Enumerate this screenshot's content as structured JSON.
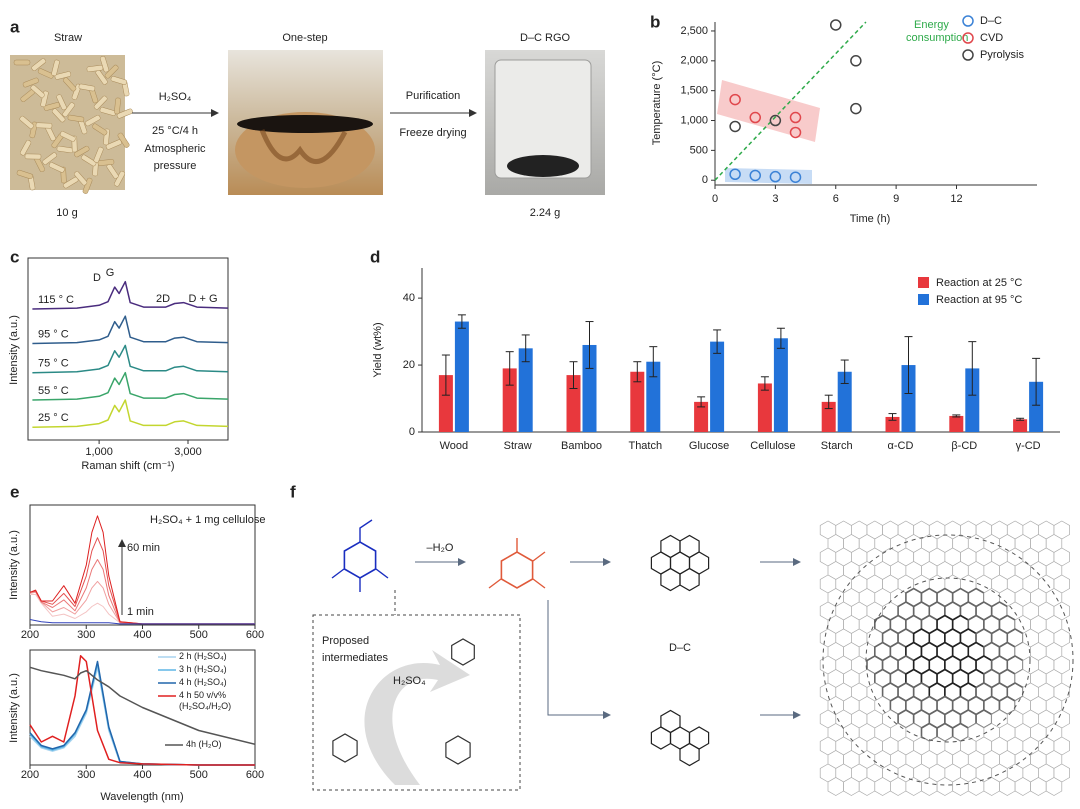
{
  "panel_a": {
    "label": "a",
    "stages": [
      {
        "name": "Straw",
        "mass": "10 g"
      },
      {
        "name": "One-step"
      },
      {
        "name": "D–C RGO",
        "mass": "2.24 g"
      }
    ],
    "step1": {
      "reagent": "H₂SO₄",
      "conditions": [
        "25 °C/4 h",
        "Atmospheric",
        "pressure"
      ]
    },
    "step2": [
      "Purification",
      "Freeze drying"
    ]
  },
  "chart_data": [
    {
      "type": "scatter",
      "panel": "b",
      "x_label": "Time (h)",
      "y_label": "Temperature (°C)",
      "xlim": [
        0,
        16
      ],
      "ylim": [
        -80,
        2650
      ],
      "xticks": [
        0,
        3,
        6,
        9,
        12
      ],
      "yticks": [
        0,
        500,
        {
          "value": 1000,
          "label": "1,000"
        },
        {
          "value": 1500,
          "label": "1,500"
        },
        {
          "value": 2000,
          "label": "2,000"
        },
        {
          "value": 2500,
          "label": "2,500"
        }
      ],
      "legend": "upper right",
      "series": [
        {
          "name": "D–C",
          "color": "#3b82d6",
          "x": [
            1,
            2,
            3,
            4
          ],
          "values": [
            100,
            80,
            60,
            50
          ]
        },
        {
          "name": "CVD",
          "color": "#e0474c",
          "x": [
            1,
            2,
            4,
            4
          ],
          "values": [
            1350,
            1050,
            1050,
            800
          ]
        },
        {
          "name": "Pyrolysis",
          "color": "#444444",
          "x": [
            1,
            3,
            6,
            7,
            7
          ],
          "values": [
            900,
            1000,
            2600,
            2000,
            1200
          ]
        }
      ],
      "trend": {
        "label": [
          "Energy",
          "consumption"
        ],
        "color": "#2eaa4a",
        "x": [
          0,
          7.5
        ],
        "values": [
          0,
          2650
        ]
      }
    },
    {
      "type": "line",
      "panel": "c",
      "x_label": "Raman shift (cm⁻¹)",
      "y_label": "Intensity (a.u.)",
      "xlim": [
        -600,
        3900
      ],
      "ylim": [
        0,
        10
      ],
      "xticks": [
        {
          "value": 1000,
          "label": "1,000"
        },
        {
          "value": 3000,
          "label": "3,000"
        }
      ],
      "annotations": [
        "D",
        "G",
        "2D",
        "D + G"
      ],
      "x": [
        -500,
        500,
        1000,
        1200,
        1350,
        1450,
        1590,
        1700,
        2000,
        2500,
        2700,
        2900,
        3200,
        3900
      ],
      "series": [
        {
          "name": "115 ° C",
          "color": "#4a2c7e",
          "values": [
            7.2,
            7.25,
            7.4,
            7.6,
            8.4,
            8.05,
            8.7,
            7.55,
            7.3,
            7.3,
            7.5,
            7.55,
            7.3,
            7.25
          ]
        },
        {
          "name": "95 ° C",
          "color": "#2f5d8c",
          "values": [
            5.3,
            5.35,
            5.5,
            5.7,
            6.5,
            6.15,
            6.8,
            5.65,
            5.4,
            5.4,
            5.6,
            5.65,
            5.4,
            5.35
          ]
        },
        {
          "name": "75 ° C",
          "color": "#2b8a86",
          "values": [
            3.7,
            3.75,
            3.9,
            4.1,
            4.9,
            4.55,
            5.2,
            4.05,
            3.8,
            3.8,
            4.0,
            4.05,
            3.8,
            3.75
          ]
        },
        {
          "name": "55 ° C",
          "color": "#3aa56a",
          "values": [
            2.2,
            2.25,
            2.4,
            2.6,
            3.4,
            3.05,
            3.7,
            2.55,
            2.3,
            2.3,
            2.5,
            2.55,
            2.3,
            2.25
          ]
        },
        {
          "name": "25 ° C",
          "color": "#c3d62f",
          "values": [
            0.7,
            0.75,
            0.9,
            1.1,
            1.9,
            1.55,
            2.2,
            1.05,
            0.8,
            0.8,
            1.0,
            1.05,
            0.8,
            0.75
          ]
        }
      ]
    },
    {
      "type": "bar",
      "panel": "d",
      "y_label": "Yield (wt%)",
      "ylim": [
        0,
        49
      ],
      "yticks": [
        0,
        20,
        40
      ],
      "legend": "upper right",
      "categories": [
        "Wood",
        "Straw",
        "Bamboo",
        "Thatch",
        "Glucose",
        "Cellulose",
        "Starch",
        "α-CD",
        "β-CD",
        "γ-CD"
      ],
      "series": [
        {
          "name": "Reaction at 25 °C",
          "color": "#e8383d",
          "values": [
            17,
            19,
            17,
            18,
            9,
            14.5,
            9,
            4.5,
            4.8,
            3.8
          ],
          "errors": [
            6,
            5,
            4,
            3,
            1.5,
            2,
            2,
            1,
            0.3,
            0.3
          ]
        },
        {
          "name": "Reaction at 95 °C",
          "color": "#2272d9",
          "values": [
            33,
            25,
            26,
            21,
            27,
            28,
            18,
            20,
            19,
            15
          ],
          "errors": [
            2,
            4,
            7,
            4.5,
            3.5,
            3,
            3.5,
            8.5,
            8,
            7
          ]
        }
      ]
    },
    {
      "type": "line",
      "panel": "e",
      "y_label": "Intensity (a.u.)",
      "xlim": [
        200,
        600
      ],
      "ylim": [
        0,
        1.1
      ],
      "xticks": [
        200,
        300,
        400,
        500,
        600
      ],
      "annotations": [
        "H₂SO₄ + 1 mg cellulose",
        "60 min",
        "1 min"
      ],
      "x": [
        200,
        210,
        220,
        240,
        260,
        280,
        300,
        310,
        320,
        330,
        340,
        360,
        400,
        500,
        600
      ],
      "series": [
        {
          "color": "#f4c4c4",
          "values": [
            0.28,
            0.28,
            0.2,
            0.08,
            0.1,
            0.06,
            0.12,
            0.17,
            0.2,
            0.17,
            0.1,
            0.02,
            0.01,
            0.01,
            0.01
          ]
        },
        {
          "color": "#f0a0a0",
          "values": [
            0.29,
            0.3,
            0.21,
            0.12,
            0.16,
            0.1,
            0.23,
            0.34,
            0.4,
            0.34,
            0.19,
            0.02,
            0.01,
            0.01,
            0.01
          ]
        },
        {
          "color": "#ea7878",
          "values": [
            0.3,
            0.31,
            0.21,
            0.16,
            0.23,
            0.13,
            0.34,
            0.51,
            0.6,
            0.51,
            0.27,
            0.02,
            0.01,
            0.01,
            0.01
          ]
        },
        {
          "color": "#e45050",
          "values": [
            0.3,
            0.31,
            0.22,
            0.19,
            0.29,
            0.17,
            0.45,
            0.68,
            0.8,
            0.68,
            0.36,
            0.03,
            0.01,
            0.01,
            0.01
          ]
        },
        {
          "color": "#dd2020",
          "values": [
            0.3,
            0.32,
            0.22,
            0.22,
            0.36,
            0.2,
            0.55,
            0.85,
            1.0,
            0.85,
            0.45,
            0.03,
            0.01,
            0.01,
            0.01
          ]
        },
        {
          "color": "#3344bb",
          "values": [
            0.05,
            0.04,
            0.03,
            0.02,
            0.02,
            0.02,
            0.02,
            0.02,
            0.02,
            0.02,
            0.02,
            0.01,
            0.01,
            0.01,
            0.01
          ]
        }
      ]
    },
    {
      "type": "line",
      "x_label": "Wavelength (nm)",
      "y_label": "Intensity (a.u.)",
      "xlim": [
        200,
        600
      ],
      "ylim": [
        0,
        1.0
      ],
      "xticks": [
        200,
        300,
        400,
        500,
        600
      ],
      "legend": "upper right",
      "x": [
        200,
        220,
        240,
        260,
        280,
        290,
        300,
        320,
        340,
        360,
        400,
        500,
        600
      ],
      "series": [
        {
          "name": "2 h (H₂SO₄)",
          "color": "#a8d4ef",
          "values": [
            0.25,
            0.15,
            0.12,
            0.15,
            0.25,
            0.35,
            0.45,
            0.85,
            0.3,
            0.02,
            0.01,
            0.0,
            0.0
          ]
        },
        {
          "name": "3 h (H₂SO₄)",
          "color": "#5fb6e5",
          "values": [
            0.27,
            0.16,
            0.13,
            0.16,
            0.27,
            0.37,
            0.47,
            0.88,
            0.32,
            0.03,
            0.01,
            0.0,
            0.0
          ]
        },
        {
          "name": "4 h (H₂SO₄)",
          "color": "#2166ac",
          "values": [
            0.28,
            0.17,
            0.14,
            0.17,
            0.28,
            0.38,
            0.48,
            0.9,
            0.33,
            0.03,
            0.01,
            0.0,
            0.0
          ]
        },
        {
          "name": "4 h 50 v/v% (H₂SO₄/H₂O)",
          "color": "#e02020",
          "values": [
            0.35,
            0.2,
            0.25,
            0.2,
            0.6,
            0.95,
            0.9,
            0.3,
            0.05,
            0.02,
            0.01,
            0.0,
            0.0
          ]
        },
        {
          "name": "4h (H₂O)",
          "color": "#555555",
          "values": [
            0.85,
            0.82,
            0.8,
            0.78,
            0.75,
            0.8,
            0.82,
            0.74,
            0.68,
            0.6,
            0.5,
            0.3,
            0.18
          ]
        }
      ]
    }
  ],
  "panel_f": {
    "label": "f",
    "dehydration": "–H₂O",
    "product": "D–C",
    "box_title": [
      "Proposed",
      "intermediates"
    ],
    "catalyst": "H₂SO₄"
  }
}
